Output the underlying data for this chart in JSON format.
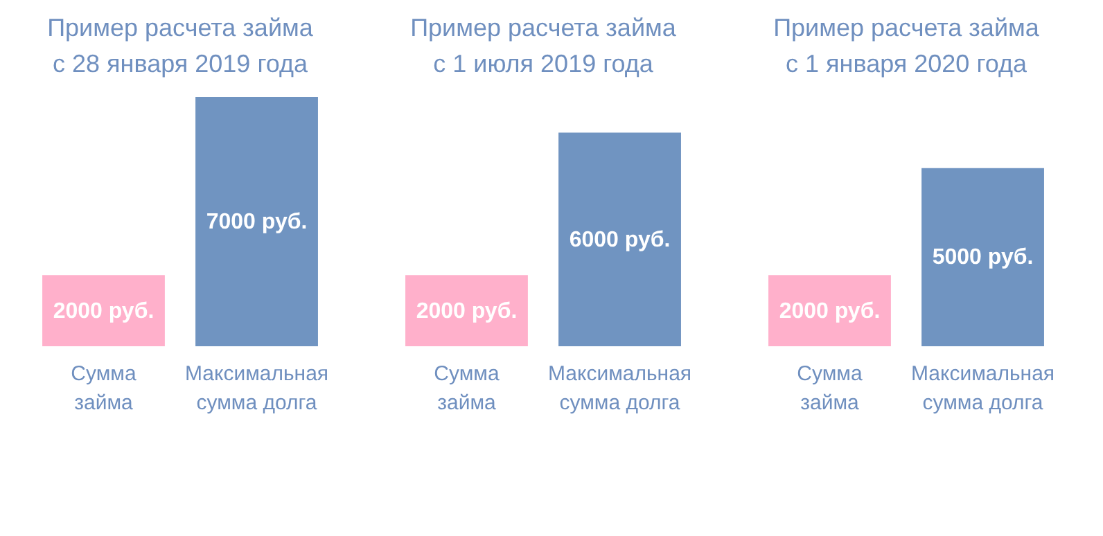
{
  "chart_data": [
    {
      "type": "bar",
      "title": "Пример расчета займа\nс 28 января 2019 года",
      "categories": [
        "Сумма\nзайма",
        "Максимальная\nсумма долга"
      ],
      "values": [
        2000,
        7000
      ],
      "colors": [
        "#ffb0cb",
        "#7094c1"
      ],
      "value_labels": [
        "2000 руб.",
        "7000 руб."
      ]
    },
    {
      "type": "bar",
      "title": "Пример расчета займа\nс 1 июля 2019 года",
      "categories": [
        "Сумма\nзайма",
        "Максимальная\nсумма долга"
      ],
      "values": [
        2000,
        6000
      ],
      "colors": [
        "#ffb0cb",
        "#7094c1"
      ],
      "value_labels": [
        "2000 руб.",
        "6000 руб."
      ]
    },
    {
      "type": "bar",
      "title": "Пример расчета займа\nс 1 января 2020 года",
      "categories": [
        "Сумма\nзайма",
        "Максимальная\nсумма долга"
      ],
      "values": [
        2000,
        5000
      ],
      "colors": [
        "#ffb0cb",
        "#7094c1"
      ],
      "value_labels": [
        "2000 руб.",
        "5000 руб."
      ]
    }
  ]
}
